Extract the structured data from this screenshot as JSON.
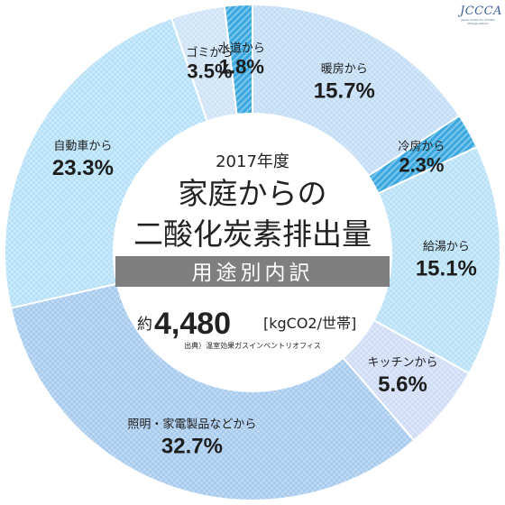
{
  "logo": {
    "text": "JCCCA",
    "subtext": "Japan Center for Climate Change Actions"
  },
  "center": {
    "year": "2017年度",
    "title_line1": "家庭からの",
    "title_line2": "二酸化炭素排出量",
    "banner": "用途別内訳",
    "total_prefix": "約",
    "total_value": "4,480",
    "total_unit": "[kgCO2/世帯]",
    "source": "出典）温室効果ガスインベントリオフィス"
  },
  "colors": {
    "banner_bg": "#7f7f7f",
    "text": "#222222",
    "slice_text": "#1d1d1d",
    "accent_cyan": "#3aa8e0"
  },
  "chart_data": {
    "type": "pie",
    "title": "二酸化炭素排出量",
    "slices": [
      {
        "label": "暖房から",
        "value": 15.7,
        "value_label": "15.7%",
        "color": "#c2ddf5"
      },
      {
        "label": "冷房から",
        "value": 2.3,
        "value_label": "2.3%",
        "color": "#3aa8e0"
      },
      {
        "label": "給湯から",
        "value": 15.1,
        "value_label": "15.1%",
        "color": "#b8e1f7"
      },
      {
        "label": "キッチンから",
        "value": 5.6,
        "value_label": "5.6%",
        "color": "#cfdcf5"
      },
      {
        "label": "照明・家電製品などから",
        "value": 32.7,
        "value_label": "32.7%",
        "color": "#a6cbee"
      },
      {
        "label": "自動車から",
        "value": 23.3,
        "value_label": "23.3%",
        "color": "#b6e0f8"
      },
      {
        "label": "ゴミから",
        "value": 3.5,
        "value_label": "3.5%",
        "color": "#cfe3f7"
      },
      {
        "label": "水道から",
        "value": 1.8,
        "value_label": "1.8%",
        "color": "#3aa8e0"
      }
    ]
  }
}
